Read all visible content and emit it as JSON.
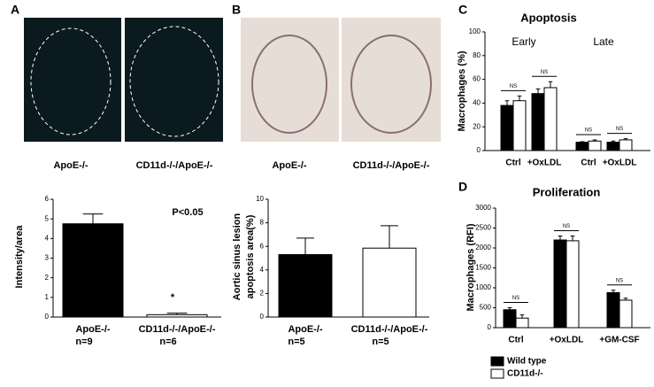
{
  "panel_labels": [
    "A",
    "B",
    "C",
    "D"
  ],
  "images": [
    {
      "captions": [
        "ApoE-/-",
        "CD11d-/-/ApoE-/-"
      ]
    },
    {
      "captions": [
        "ApoE-/-",
        "CD11d-/-/ApoE-/-"
      ]
    }
  ],
  "chart_data": [
    {
      "type": "bar",
      "ylabel": [
        "Intensity/area"
      ],
      "categories": [
        "ApoE-/-",
        "CD11d-/-/ApoE-/-"
      ],
      "n_labels": [
        "n=9",
        "n=6"
      ],
      "values": [
        4.75,
        0.12
      ],
      "errors": [
        0.5,
        0.08
      ],
      "colors": [
        "#000000",
        "#ffffff"
      ],
      "ylim": [
        0,
        6
      ],
      "yticks": [
        0,
        1,
        2,
        3,
        4,
        5,
        6
      ],
      "annotations": [
        "P<0.05",
        "*"
      ]
    },
    {
      "type": "bar",
      "ylabel": [
        "Aortic sinus lesion",
        "apoptosis area(%)"
      ],
      "categories": [
        "ApoE-/-",
        "CD11d-/-/ApoE-/-"
      ],
      "n_labels": [
        "n=5",
        "n=5"
      ],
      "values": [
        5.3,
        5.85
      ],
      "errors": [
        1.4,
        1.9
      ],
      "colors": [
        "#000000",
        "#ffffff"
      ],
      "ylim": [
        0,
        10
      ],
      "yticks": [
        0,
        2,
        4,
        6,
        8,
        10
      ]
    },
    {
      "type": "grouped_bar",
      "title": "Apoptosis",
      "ylabel": [
        "Macrophages (%)"
      ],
      "categories": [
        "Ctrl",
        "+OxLDL",
        "Ctrl",
        "+OxLDL"
      ],
      "group_labels": [
        "Early",
        "Late"
      ],
      "series": [
        {
          "color": "#000000",
          "values": [
            38,
            48,
            7,
            7
          ],
          "errors": [
            4,
            4,
            0.5,
            1
          ]
        },
        {
          "color": "#ffffff",
          "values": [
            42,
            53,
            8,
            9
          ],
          "errors": [
            4,
            5,
            1,
            1
          ]
        }
      ],
      "ylim": [
        0,
        100
      ],
      "yticks": [
        0,
        20,
        40,
        60,
        80,
        100
      ],
      "annotations": [
        "NS",
        "NS",
        "NS",
        "NS"
      ]
    },
    {
      "type": "grouped_bar",
      "title": "Proliferation",
      "ylabel": [
        "Macrophages (RFI)"
      ],
      "categories": [
        "Ctrl",
        "+OxLDL",
        "+GM-CSF"
      ],
      "series": [
        {
          "name": "Wild type",
          "color": "#000000",
          "values": [
            450,
            2200,
            880
          ],
          "errors": [
            50,
            100,
            60
          ]
        },
        {
          "name": "CD11d-/-",
          "color": "#ffffff",
          "values": [
            240,
            2180,
            690
          ],
          "errors": [
            80,
            120,
            50
          ]
        }
      ],
      "ylim": [
        0,
        3000
      ],
      "yticks": [
        0,
        500,
        1000,
        1500,
        2000,
        2500,
        3000
      ],
      "annotations": [
        "NS",
        "NS",
        "NS"
      ]
    }
  ]
}
